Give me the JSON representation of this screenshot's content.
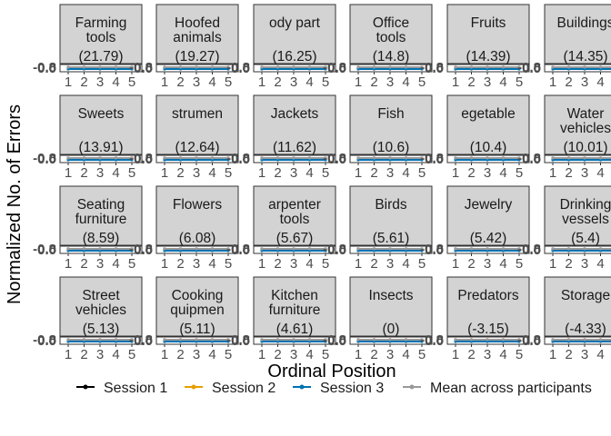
{
  "chart_data": {
    "type": "line",
    "xlabel": "Ordinal Position",
    "ylabel": "Normalized No. of Errors",
    "x": [
      1,
      2,
      3,
      4,
      5
    ],
    "x_tick_labels": [
      "1",
      "2",
      "3",
      "4",
      "5"
    ],
    "y_tick_labels": [
      "-0.8",
      "0.0"
    ],
    "legend": {
      "position": "bottom",
      "entries": [
        {
          "name": "Session 1",
          "color": "#000000"
        },
        {
          "name": "Session 2",
          "color": "#E69F00"
        },
        {
          "name": "Session 3",
          "color": "#0072B2"
        },
        {
          "name": "Mean across participants",
          "color": "#999999"
        }
      ]
    },
    "panels": [
      {
        "label_lines": [
          "Farming",
          "tools",
          "(21.79)"
        ]
      },
      {
        "label_lines": [
          "Hoofed",
          "animals",
          "(19.27)"
        ]
      },
      {
        "label_lines": [
          "ody part",
          "",
          "(16.25)"
        ]
      },
      {
        "label_lines": [
          "Office",
          "tools",
          "(14.8)"
        ]
      },
      {
        "label_lines": [
          "Fruits",
          "",
          "(14.39)"
        ]
      },
      {
        "label_lines": [
          "Buildings",
          "",
          "(14.35)"
        ]
      },
      {
        "label_lines": [
          "Sweets",
          "",
          "(13.91)"
        ]
      },
      {
        "label_lines": [
          "strumen",
          "",
          "(12.64)"
        ]
      },
      {
        "label_lines": [
          "Jackets",
          "",
          "(11.62)"
        ]
      },
      {
        "label_lines": [
          "Fish",
          "",
          "(10.6)"
        ]
      },
      {
        "label_lines": [
          "egetable",
          "",
          "(10.4)"
        ]
      },
      {
        "label_lines": [
          "Water",
          "vehicles",
          "(10.01)"
        ]
      },
      {
        "label_lines": [
          "Seating",
          "furniture",
          "(8.59)"
        ]
      },
      {
        "label_lines": [
          "Flowers",
          "",
          "(6.08)"
        ]
      },
      {
        "label_lines": [
          "arpenter",
          "tools",
          "(5.67)"
        ]
      },
      {
        "label_lines": [
          "Birds",
          "",
          "(5.61)"
        ]
      },
      {
        "label_lines": [
          "Jewelry",
          "",
          "(5.42)"
        ]
      },
      {
        "label_lines": [
          "Drinking",
          "vessels",
          "(5.4)"
        ]
      },
      {
        "label_lines": [
          "Street",
          "vehicles",
          "(5.13)"
        ]
      },
      {
        "label_lines": [
          "Cooking",
          "quipmen",
          "(5.11)"
        ]
      },
      {
        "label_lines": [
          "Kitchen",
          "furniture",
          "(4.61)"
        ]
      },
      {
        "label_lines": [
          "Insects",
          "",
          "(0)"
        ]
      },
      {
        "label_lines": [
          "Predators",
          "",
          "(-3.15)"
        ]
      },
      {
        "label_lines": [
          "Storage",
          "",
          "(-4.33)"
        ]
      }
    ]
  }
}
